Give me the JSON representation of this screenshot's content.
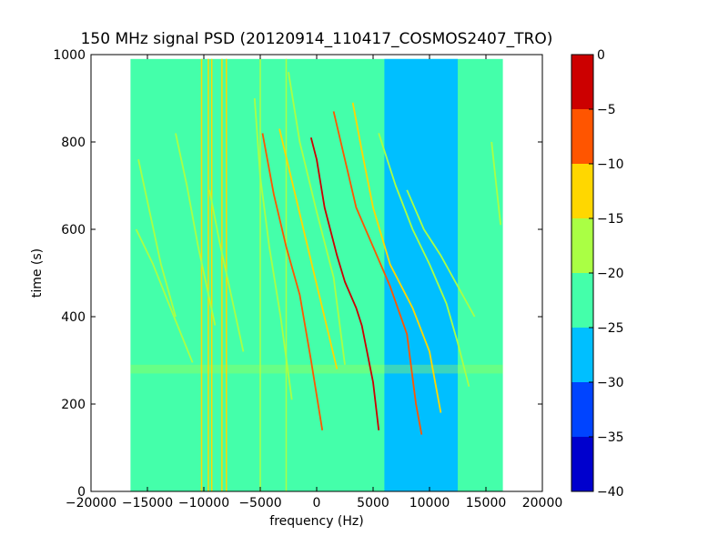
{
  "chart_data": {
    "type": "heatmap",
    "title": "150 MHz signal PSD (20120914_110417_COSMOS2407_TRO)",
    "xlabel": "frequency (Hz)",
    "ylabel": "time (s)",
    "xlim": [
      -20000,
      20000
    ],
    "ylim": [
      0,
      1000
    ],
    "x_ticks": [
      -20000,
      -15000,
      -10000,
      -5000,
      0,
      5000,
      10000,
      15000,
      20000
    ],
    "x_tick_labels": [
      "−20000",
      "−15000",
      "−10000",
      "−5000",
      "0",
      "5000",
      "10000",
      "15000",
      "20000"
    ],
    "y_ticks": [
      0,
      200,
      400,
      600,
      800,
      1000
    ],
    "y_tick_labels": [
      "0",
      "200",
      "400",
      "600",
      "800",
      "1000"
    ],
    "data_extent": {
      "x": [
        -16500,
        16500
      ],
      "y": [
        0,
        990
      ]
    },
    "colorbar": {
      "ticks": [
        0,
        -5,
        -10,
        -15,
        -20,
        -25,
        -30,
        -35,
        -40
      ],
      "tick_labels": [
        "0",
        "−5",
        "−10",
        "−15",
        "−20",
        "−25",
        "−30",
        "−35",
        "−40"
      ],
      "levels": [
        {
          "from": -40,
          "to": -35,
          "color": "#0000cd"
        },
        {
          "from": -35,
          "to": -30,
          "color": "#0044ff"
        },
        {
          "from": -30,
          "to": -25,
          "color": "#00bfff"
        },
        {
          "from": -25,
          "to": -20,
          "color": "#44ffaa"
        },
        {
          "from": -20,
          "to": -15,
          "color": "#aaff44"
        },
        {
          "from": -15,
          "to": -10,
          "color": "#ffd700"
        },
        {
          "from": -10,
          "to": -5,
          "color": "#ff5500"
        },
        {
          "from": -5,
          "to": 0,
          "color": "#cc0000"
        }
      ]
    },
    "background_level": -22.5,
    "low_level_region": {
      "x": [
        6000,
        12500
      ],
      "y": [
        0,
        990
      ],
      "level": -27.5
    },
    "horizontal_band": {
      "y": [
        270,
        290
      ],
      "level": -17
    },
    "vertical_lines": [
      {
        "x": -10200,
        "level": -12
      },
      {
        "x": -9600,
        "level": -12
      },
      {
        "x": -9300,
        "level": -12
      },
      {
        "x": -8400,
        "level": -13
      },
      {
        "x": -8000,
        "level": -13
      },
      {
        "x": -5000,
        "level": -16
      },
      {
        "x": -2700,
        "level": -16
      }
    ],
    "doppler_traces": [
      {
        "points": [
          [
            -16000,
            600
          ],
          [
            -14500,
            520
          ],
          [
            -12800,
            410
          ],
          [
            -11000,
            295
          ]
        ],
        "level": -16
      },
      {
        "points": [
          [
            -15800,
            760
          ],
          [
            -14800,
            640
          ],
          [
            -13800,
            520
          ],
          [
            -12500,
            400
          ]
        ],
        "level": -16
      },
      {
        "points": [
          [
            -12500,
            820
          ],
          [
            -11500,
            700
          ],
          [
            -10500,
            560
          ],
          [
            -9000,
            380
          ]
        ],
        "level": -16
      },
      {
        "points": [
          [
            -9500,
            690
          ],
          [
            -8600,
            570
          ],
          [
            -7500,
            440
          ],
          [
            -6500,
            320
          ]
        ],
        "level": -15
      },
      {
        "points": [
          [
            -5500,
            900
          ],
          [
            -5000,
            720
          ],
          [
            -4200,
            560
          ],
          [
            -3200,
            400
          ],
          [
            -2200,
            210
          ]
        ],
        "level": -15
      },
      {
        "points": [
          [
            -4800,
            820
          ],
          [
            -3800,
            680
          ],
          [
            -2700,
            560
          ],
          [
            -1500,
            450
          ],
          [
            -500,
            300
          ],
          [
            500,
            140
          ]
        ],
        "level": -7
      },
      {
        "points": [
          [
            -3300,
            830
          ],
          [
            -2000,
            690
          ],
          [
            -800,
            560
          ],
          [
            500,
            420
          ],
          [
            1800,
            280
          ]
        ],
        "level": -12
      },
      {
        "points": [
          [
            -2500,
            960
          ],
          [
            -1500,
            800
          ],
          [
            0,
            640
          ],
          [
            1500,
            490
          ],
          [
            2500,
            290
          ]
        ],
        "level": -15
      },
      {
        "points": [
          [
            -500,
            810
          ],
          [
            0,
            760
          ],
          [
            700,
            650
          ],
          [
            1800,
            540
          ],
          [
            2500,
            480
          ],
          [
            3500,
            420
          ],
          [
            4000,
            380
          ],
          [
            5000,
            250
          ],
          [
            5500,
            140
          ]
        ],
        "level": -3
      },
      {
        "points": [
          [
            1500,
            870
          ],
          [
            2500,
            760
          ],
          [
            3500,
            650
          ],
          [
            5000,
            560
          ],
          [
            6500,
            470
          ],
          [
            8000,
            360
          ],
          [
            8800,
            200
          ],
          [
            9300,
            130
          ]
        ],
        "level": -8
      },
      {
        "points": [
          [
            3200,
            890
          ],
          [
            4000,
            780
          ],
          [
            5000,
            650
          ],
          [
            6500,
            520
          ],
          [
            8500,
            420
          ],
          [
            10000,
            320
          ],
          [
            11000,
            180
          ]
        ],
        "level": -13
      },
      {
        "points": [
          [
            5500,
            820
          ],
          [
            7000,
            700
          ],
          [
            8500,
            600
          ],
          [
            10000,
            520
          ],
          [
            11500,
            430
          ],
          [
            12500,
            340
          ],
          [
            13500,
            240
          ]
        ],
        "level": -16
      },
      {
        "points": [
          [
            8000,
            690
          ],
          [
            9500,
            600
          ],
          [
            11000,
            540
          ],
          [
            12500,
            470
          ],
          [
            14000,
            400
          ]
        ],
        "level": -16
      },
      {
        "points": [
          [
            15500,
            800
          ],
          [
            16300,
            610
          ]
        ],
        "level": -15
      }
    ]
  }
}
